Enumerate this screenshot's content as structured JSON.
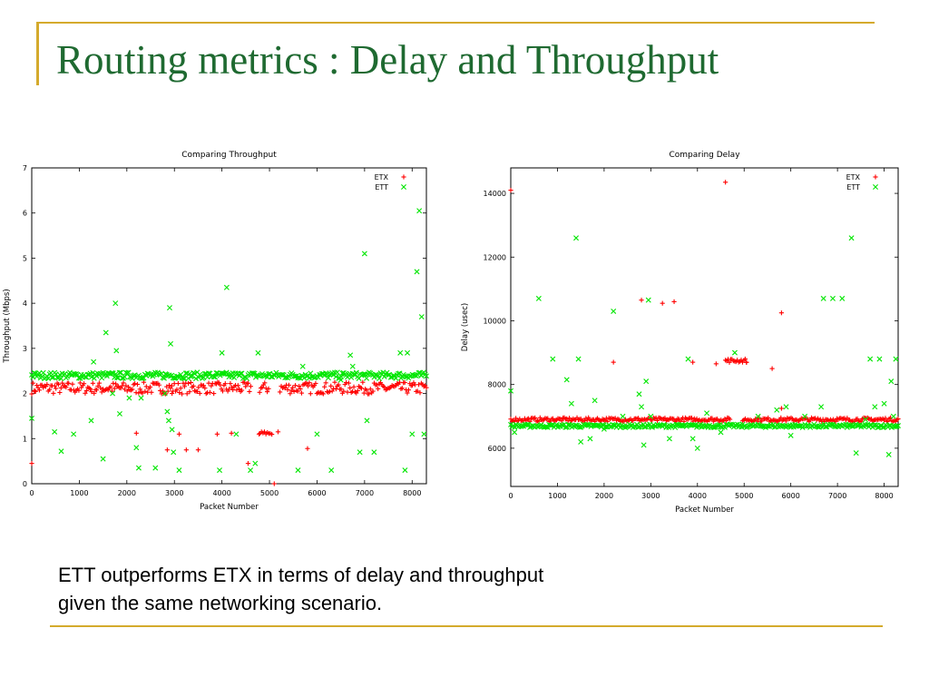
{
  "slide": {
    "title": "Routing metrics : Delay and Throughput",
    "caption_lines": [
      "ETT outperforms ETX in terms of delay and throughput",
      "given the same networking scenario."
    ],
    "accent_color": "#d4aa2c",
    "title_color": "#1f6a31"
  },
  "chart_data": [
    {
      "type": "scatter",
      "title": "Comparing Throughput",
      "xlabel": "Packet Number",
      "ylabel": "Throughput (Mbps)",
      "xlim": [
        0,
        8300
      ],
      "ylim": [
        0,
        7
      ],
      "xticks": [
        0,
        1000,
        2000,
        3000,
        4000,
        5000,
        6000,
        7000,
        8000
      ],
      "yticks": [
        0,
        1,
        2,
        3,
        4,
        5,
        6,
        7
      ],
      "legend": "top-right",
      "grid": false,
      "series": [
        {
          "name": "ETX",
          "marker": "+",
          "color": "#ff0000",
          "band": {
            "x": [
              0,
              8300
            ],
            "y": 2.12,
            "spread": 0.13,
            "gaps": [
              [
                4620,
                4780
              ],
              [
                5000,
                5200
              ]
            ]
          },
          "cluster": {
            "x": [
              4800,
              5050
            ],
            "y": 1.12,
            "spread": 0.04
          },
          "points": [
            [
              0,
              0.45
            ],
            [
              60,
              2.05
            ],
            [
              2200,
              1.12
            ],
            [
              2850,
              0.75
            ],
            [
              2950,
              2.0
            ],
            [
              3100,
              1.1
            ],
            [
              3250,
              0.75
            ],
            [
              3500,
              0.75
            ],
            [
              3900,
              1.1
            ],
            [
              4200,
              1.12
            ],
            [
              4550,
              0.45
            ],
            [
              4780,
              1.1
            ],
            [
              5180,
              1.15
            ],
            [
              5800,
              0.78
            ],
            [
              5100,
              0.0
            ]
          ]
        },
        {
          "name": "ETT",
          "marker": "x",
          "color": "#00e600",
          "band": {
            "x": [
              0,
              8300
            ],
            "y": 2.4,
            "spread": 0.07
          },
          "points": [
            [
              0,
              1.45
            ],
            [
              480,
              1.15
            ],
            [
              620,
              0.72
            ],
            [
              880,
              1.1
            ],
            [
              1250,
              1.4
            ],
            [
              1300,
              2.7
            ],
            [
              1500,
              0.55
            ],
            [
              1560,
              3.35
            ],
            [
              1700,
              2.0
            ],
            [
              1760,
              4.0
            ],
            [
              1780,
              2.95
            ],
            [
              1850,
              1.55
            ],
            [
              2050,
              1.9
            ],
            [
              2200,
              0.8
            ],
            [
              2250,
              0.35
            ],
            [
              2300,
              1.9
            ],
            [
              2600,
              0.35
            ],
            [
              2800,
              2.0
            ],
            [
              2850,
              1.6
            ],
            [
              2880,
              1.4
            ],
            [
              2900,
              3.9
            ],
            [
              2920,
              3.1
            ],
            [
              2950,
              1.2
            ],
            [
              2980,
              0.7
            ],
            [
              3100,
              0.3
            ],
            [
              3950,
              0.3
            ],
            [
              4000,
              2.9
            ],
            [
              4100,
              4.35
            ],
            [
              4300,
              1.1
            ],
            [
              4600,
              0.3
            ],
            [
              4700,
              0.45
            ],
            [
              4760,
              2.9
            ],
            [
              5600,
              0.3
            ],
            [
              5700,
              2.6
            ],
            [
              6000,
              1.1
            ],
            [
              6300,
              0.3
            ],
            [
              6500,
              2.3
            ],
            [
              6700,
              2.85
            ],
            [
              6750,
              2.6
            ],
            [
              6900,
              0.7
            ],
            [
              7000,
              5.1
            ],
            [
              7050,
              1.4
            ],
            [
              7200,
              0.7
            ],
            [
              7750,
              2.9
            ],
            [
              7850,
              0.3
            ],
            [
              7900,
              2.9
            ],
            [
              8000,
              1.1
            ],
            [
              8100,
              4.7
            ],
            [
              8150,
              6.05
            ],
            [
              8200,
              3.7
            ],
            [
              8250,
              1.1
            ]
          ]
        }
      ]
    },
    {
      "type": "scatter",
      "title": "Comparing Delay",
      "xlabel": "Packet Number",
      "ylabel": "Delay (usec)",
      "xlim": [
        0,
        8300
      ],
      "ylim": [
        4800,
        14800
      ],
      "xticks": [
        0,
        1000,
        2000,
        3000,
        4000,
        5000,
        6000,
        7000,
        8000
      ],
      "yticks": [
        6000,
        8000,
        10000,
        12000,
        14000
      ],
      "legend": "top-right",
      "grid": false,
      "series": [
        {
          "name": "ETX",
          "marker": "+",
          "color": "#ff0000",
          "band": {
            "x": [
              0,
              8300
            ],
            "y": 6900,
            "spread": 60,
            "gaps": [
              [
                4700,
                4950
              ]
            ]
          },
          "cluster": {
            "x": [
              4600,
              5050
            ],
            "y": 8750,
            "spread": 60
          },
          "points": [
            [
              0,
              14100
            ],
            [
              2200,
              8700
            ],
            [
              2800,
              10650
            ],
            [
              3250,
              10550
            ],
            [
              3500,
              10600
            ],
            [
              3900,
              8700
            ],
            [
              4400,
              8650
            ],
            [
              4600,
              14350
            ],
            [
              5050,
              8700
            ],
            [
              5600,
              8500
            ],
            [
              5800,
              10250
            ],
            [
              5800,
              7250
            ]
          ]
        },
        {
          "name": "ETT",
          "marker": "x",
          "color": "#00e600",
          "band": {
            "x": [
              0,
              8300
            ],
            "y": 6700,
            "spread": 50
          },
          "points": [
            [
              0,
              7800
            ],
            [
              80,
              6500
            ],
            [
              600,
              10700
            ],
            [
              900,
              8800
            ],
            [
              1200,
              8150
            ],
            [
              1300,
              7400
            ],
            [
              1400,
              12600
            ],
            [
              1450,
              8800
            ],
            [
              1500,
              6200
            ],
            [
              1700,
              6300
            ],
            [
              1800,
              7500
            ],
            [
              2000,
              6600
            ],
            [
              2200,
              10300
            ],
            [
              2400,
              7000
            ],
            [
              2750,
              7700
            ],
            [
              2800,
              7300
            ],
            [
              2850,
              6100
            ],
            [
              2900,
              8100
            ],
            [
              2950,
              10650
            ],
            [
              3000,
              7000
            ],
            [
              3400,
              6300
            ],
            [
              3800,
              8800
            ],
            [
              3900,
              6300
            ],
            [
              4000,
              6000
            ],
            [
              4200,
              7100
            ],
            [
              4500,
              6500
            ],
            [
              4800,
              9000
            ],
            [
              5300,
              7000
            ],
            [
              5700,
              7200
            ],
            [
              5900,
              7300
            ],
            [
              6000,
              6400
            ],
            [
              6300,
              7000
            ],
            [
              6650,
              7300
            ],
            [
              6700,
              10700
            ],
            [
              6900,
              10700
            ],
            [
              7100,
              10700
            ],
            [
              7300,
              12600
            ],
            [
              7400,
              5850
            ],
            [
              7600,
              6900
            ],
            [
              7700,
              8800
            ],
            [
              7800,
              7300
            ],
            [
              7900,
              8800
            ],
            [
              8000,
              7400
            ],
            [
              8100,
              5800
            ],
            [
              8150,
              8100
            ],
            [
              8200,
              7000
            ],
            [
              8250,
              8800
            ]
          ]
        }
      ]
    }
  ]
}
